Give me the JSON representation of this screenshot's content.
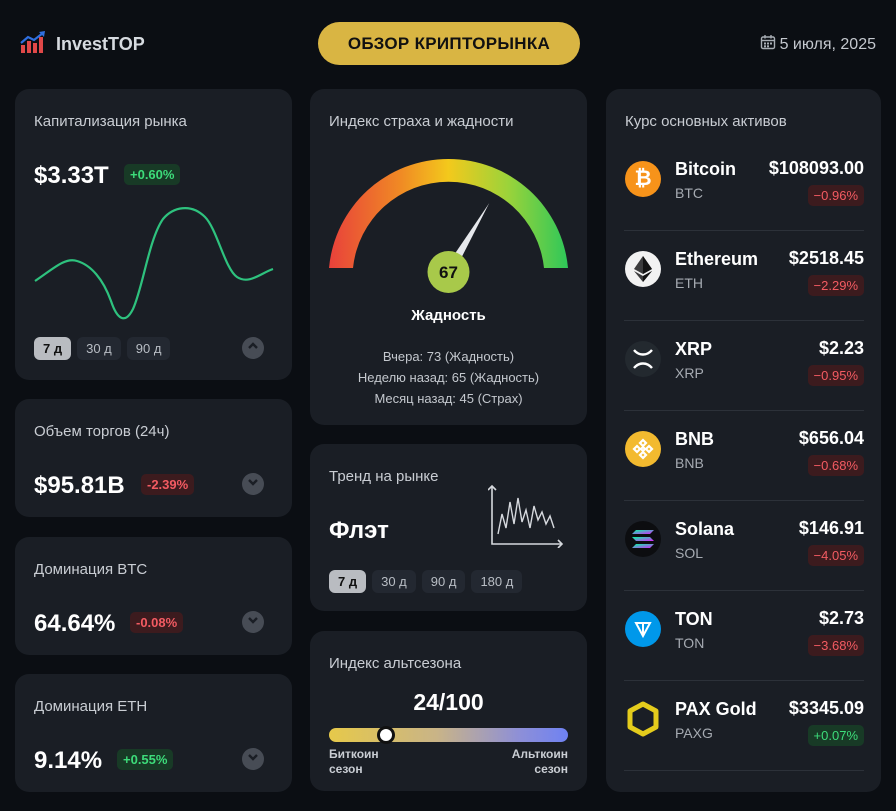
{
  "header": {
    "brand": "InvestTOP",
    "title": "ОБЗОР КРИПТОРЫНКА",
    "date": "5 июля, 2025"
  },
  "market_cap": {
    "title": "Капитализация рынка",
    "value": "$3.33T",
    "change": "+0.60%",
    "periods": [
      "7 д",
      "30 д",
      "90 д"
    ],
    "active_period": "7 д"
  },
  "volume": {
    "title": "Объем торгов (24ч)",
    "value": "$95.81B",
    "change": "-2.39%"
  },
  "btc_dom": {
    "title": "Доминация BTC",
    "value": "64.64%",
    "change": "-0.08%"
  },
  "eth_dom": {
    "title": "Доминация ETH",
    "value": "9.14%",
    "change": "+0.55%"
  },
  "fear_greed": {
    "title": "Индекс страха и жадности",
    "value": "67",
    "label": "Жадность",
    "history": [
      "Вчера: 73 (Жадность)",
      "Неделю назад: 65 (Жадность)",
      "Месяц назад: 45 (Страх)"
    ],
    "scale_max": 100
  },
  "trend": {
    "title": "Тренд на рынке",
    "value": "Флэт",
    "periods": [
      "7 д",
      "30 д",
      "90 д",
      "180 д"
    ],
    "active_period": "7 д"
  },
  "altseason": {
    "title": "Индекс альтсезона",
    "value": "24/100",
    "score": 24,
    "left_label_1": "Биткоин",
    "left_label_2": "сезон",
    "right_label_1": "Альткоин",
    "right_label_2": "сезон"
  },
  "assets": {
    "title": "Курс основных активов",
    "items": [
      {
        "name": "Bitcoin",
        "symbol": "BTC",
        "price": "$108093.00",
        "change": "−0.96%",
        "dir": "down",
        "icon": "bitcoin-icon"
      },
      {
        "name": "Ethereum",
        "symbol": "ETH",
        "price": "$2518.45",
        "change": "−2.29%",
        "dir": "down",
        "icon": "ethereum-icon"
      },
      {
        "name": "XRP",
        "symbol": "XRP",
        "price": "$2.23",
        "change": "−0.95%",
        "dir": "down",
        "icon": "xrp-icon"
      },
      {
        "name": "BNB",
        "symbol": "BNB",
        "price": "$656.04",
        "change": "−0.68%",
        "dir": "down",
        "icon": "bnb-icon"
      },
      {
        "name": "Solana",
        "symbol": "SOL",
        "price": "$146.91",
        "change": "−4.05%",
        "dir": "down",
        "icon": "solana-icon"
      },
      {
        "name": "TON",
        "symbol": "TON",
        "price": "$2.73",
        "change": "−3.68%",
        "dir": "down",
        "icon": "ton-icon"
      },
      {
        "name": "PAX Gold",
        "symbol": "PAXG",
        "price": "$3345.09",
        "change": "+0.07%",
        "dir": "up",
        "icon": "paxgold-icon"
      }
    ]
  },
  "colors": {
    "accent": "#d9b543",
    "up": "#3ddc7a",
    "down": "#f35b62",
    "card": "#1a1e25"
  }
}
